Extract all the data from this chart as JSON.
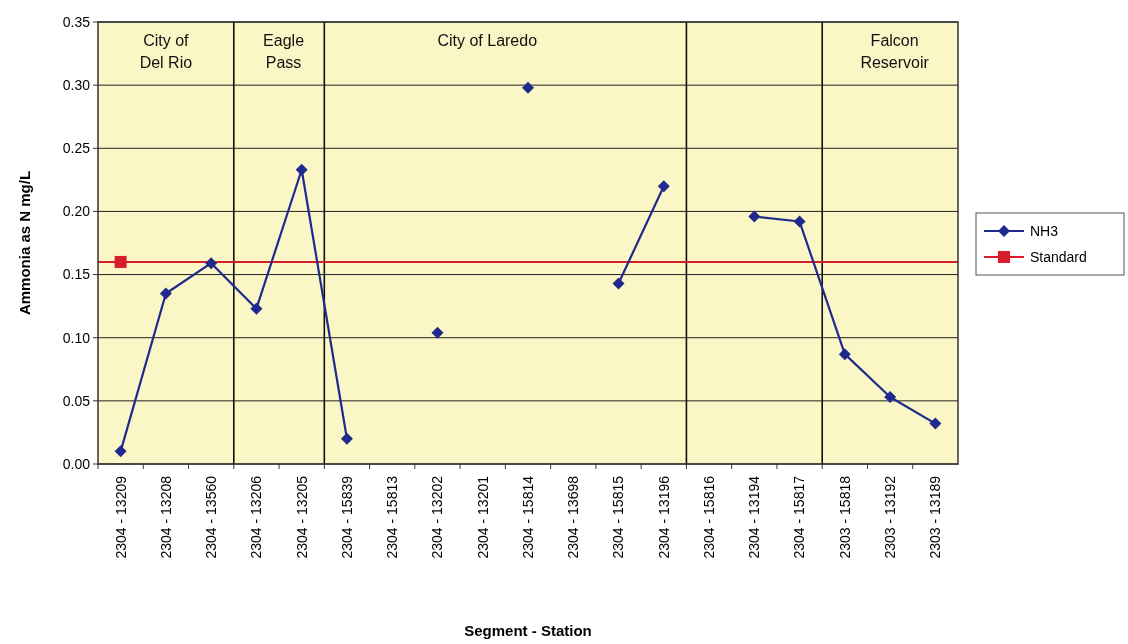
{
  "chart_data": {
    "type": "line",
    "xlabel": "Segment - Station",
    "ylabel": "Ammonia as N  mg/L",
    "categories": [
      "2304 - 13209",
      "2304 - 13208",
      "2304 - 13560",
      "2304 - 13206",
      "2304 - 13205",
      "2304 - 15839",
      "2304 - 15813",
      "2304 - 13202",
      "2304 - 13201",
      "2304 - 15814",
      "2304 - 13698",
      "2304 - 15815",
      "2304 - 13196",
      "2304 - 15816",
      "2304 - 13194",
      "2304 - 15817",
      "2303 - 15818",
      "2303 - 13192",
      "2303 - 13189"
    ],
    "series": [
      {
        "name": "NH3",
        "color": "#1f2a8c",
        "marker": "diamond",
        "values": [
          0.01,
          0.135,
          0.159,
          0.123,
          0.233,
          0.02,
          null,
          0.104,
          null,
          0.298,
          null,
          0.143,
          0.22,
          null,
          0.196,
          0.192,
          0.087,
          0.053,
          0.032
        ]
      },
      {
        "name": "Standard",
        "color": "#d81c2c",
        "marker": "square",
        "values": [
          0.16,
          null,
          null,
          null,
          null,
          null,
          null,
          null,
          null,
          null,
          null,
          null,
          null,
          null,
          null,
          null,
          null,
          null,
          null
        ]
      }
    ],
    "ref_lines": [
      {
        "axis": "y",
        "value": 0.16,
        "color": "#d81c2c"
      }
    ],
    "annotations": [
      "City of\nDel Rio",
      "Eagle\nPass",
      "City of Laredo",
      "Falcon\nReservoir"
    ],
    "ylim": [
      0,
      0.35
    ],
    "yticks": [
      {
        "value": 0,
        "label": "0.00"
      },
      {
        "value": 0.05,
        "label": "0.05"
      },
      {
        "value": 0.1,
        "label": "0.10"
      },
      {
        "value": 0.15,
        "label": "0.15"
      },
      {
        "value": 0.2,
        "label": "0.20"
      },
      {
        "value": 0.25,
        "label": "0.25"
      },
      {
        "value": 0.3,
        "label": "0.30"
      },
      {
        "value": 0.35,
        "label": "0.35"
      }
    ],
    "grid": "y",
    "legend": "right"
  }
}
